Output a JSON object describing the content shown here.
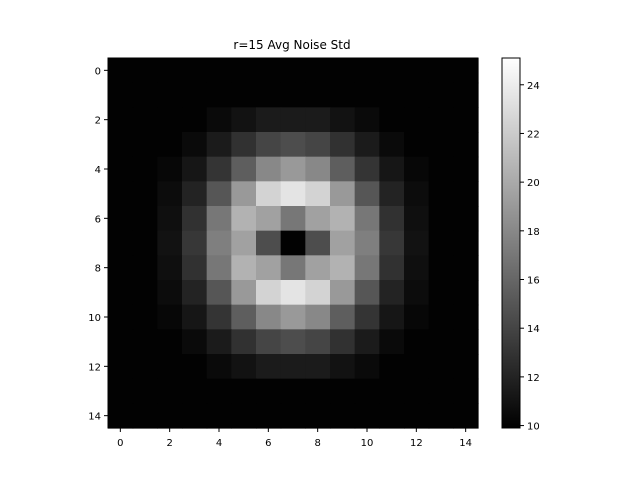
{
  "chart_data": {
    "type": "heatmap",
    "title": "r=15 Avg Noise Std",
    "xlabel": "",
    "ylabel": "",
    "colormap": "gray",
    "grid": false,
    "x_ticks": [
      0,
      2,
      4,
      6,
      8,
      10,
      12,
      14
    ],
    "y_ticks": [
      0,
      2,
      4,
      6,
      8,
      10,
      12,
      14
    ],
    "x_range": [
      -0.5,
      14.5
    ],
    "y_range": [
      14.5,
      -0.5
    ],
    "colorbar": {
      "range": [
        9.9,
        25.1
      ],
      "ticks": [
        10,
        12,
        14,
        16,
        18,
        20,
        22,
        24
      ]
    },
    "values": [
      [
        10.0,
        10.0,
        10.0,
        10.0,
        10.0,
        10.0,
        10.0,
        10.0,
        10.0,
        10.0,
        10.0,
        10.0,
        10.0,
        10.0,
        10.0
      ],
      [
        10.0,
        10.0,
        10.0,
        10.0,
        10.0,
        10.0,
        10.0,
        10.0,
        10.0,
        10.0,
        10.0,
        10.0,
        10.0,
        10.0,
        10.0
      ],
      [
        10.0,
        10.0,
        10.0,
        10.0,
        10.5,
        11.0,
        11.5,
        11.5,
        11.5,
        11.0,
        10.5,
        10.0,
        10.0,
        10.0,
        10.0
      ],
      [
        10.0,
        10.0,
        10.0,
        10.5,
        11.5,
        12.8,
        14.0,
        14.5,
        14.0,
        12.8,
        11.5,
        10.5,
        10.0,
        10.0,
        10.0
      ],
      [
        10.0,
        10.0,
        10.3,
        11.2,
        13.0,
        15.5,
        18.0,
        19.0,
        18.0,
        15.5,
        13.0,
        11.2,
        10.3,
        10.0,
        10.0
      ],
      [
        10.0,
        10.0,
        10.6,
        12.0,
        15.0,
        19.0,
        22.5,
        23.5,
        22.5,
        19.0,
        15.0,
        12.0,
        10.6,
        10.0,
        10.0
      ],
      [
        10.0,
        10.0,
        10.8,
        12.8,
        17.0,
        20.5,
        19.5,
        17.0,
        19.5,
        20.5,
        17.0,
        12.8,
        10.8,
        10.0,
        10.0
      ],
      [
        10.0,
        10.0,
        11.0,
        13.2,
        17.5,
        19.5,
        14.5,
        10.0,
        14.5,
        19.5,
        17.5,
        13.2,
        11.0,
        10.0,
        10.0
      ],
      [
        10.0,
        10.0,
        10.8,
        12.8,
        17.0,
        20.5,
        19.5,
        17.0,
        19.5,
        20.5,
        17.0,
        12.8,
        10.8,
        10.0,
        10.0
      ],
      [
        10.0,
        10.0,
        10.6,
        12.0,
        15.0,
        19.0,
        22.5,
        23.5,
        22.5,
        19.0,
        15.0,
        12.0,
        10.6,
        10.0,
        10.0
      ],
      [
        10.0,
        10.0,
        10.3,
        11.2,
        13.0,
        15.5,
        18.0,
        19.0,
        18.0,
        15.5,
        13.0,
        11.2,
        10.3,
        10.0,
        10.0
      ],
      [
        10.0,
        10.0,
        10.0,
        10.5,
        11.5,
        12.8,
        14.0,
        14.5,
        14.0,
        12.8,
        11.5,
        10.5,
        10.0,
        10.0,
        10.0
      ],
      [
        10.0,
        10.0,
        10.0,
        10.0,
        10.5,
        11.0,
        11.5,
        11.5,
        11.5,
        11.0,
        10.5,
        10.0,
        10.0,
        10.0,
        10.0
      ],
      [
        10.0,
        10.0,
        10.0,
        10.0,
        10.0,
        10.0,
        10.0,
        10.0,
        10.0,
        10.0,
        10.0,
        10.0,
        10.0,
        10.0,
        10.0
      ],
      [
        10.0,
        10.0,
        10.0,
        10.0,
        10.0,
        10.0,
        10.0,
        10.0,
        10.0,
        10.0,
        10.0,
        10.0,
        10.0,
        10.0,
        10.0
      ]
    ]
  }
}
